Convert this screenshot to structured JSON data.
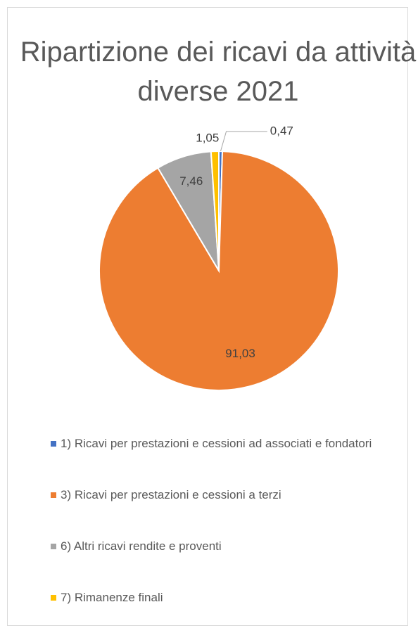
{
  "chart_data": {
    "type": "pie",
    "title": "Ripartizione dei ricavi da attività diverse 2021",
    "categories": [
      "1) Ricavi per prestazioni e cessioni ad associati e fondatori",
      "3) Ricavi per prestazioni e cessioni a terzi",
      "6) Altri ricavi rendite e proventi",
      "7) Rimanenze finali"
    ],
    "values": [
      0.47,
      91.03,
      7.46,
      1.05
    ],
    "value_labels": [
      "0,47",
      "91,03",
      "7,46",
      "1,05"
    ],
    "colors": [
      "#4472c4",
      "#ed7d31",
      "#a5a5a5",
      "#ffc000"
    ],
    "legend": "bottom"
  }
}
